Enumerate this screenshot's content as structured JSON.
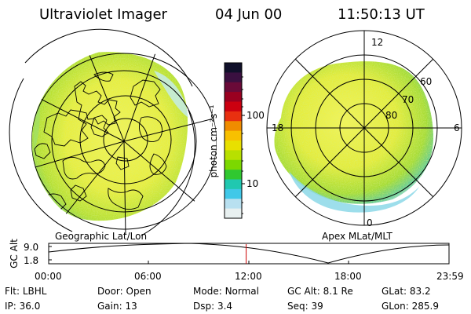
{
  "header": {
    "title": "Ultraviolet Imager",
    "date": "04 Jun 00",
    "time": "11:50:13 UT"
  },
  "left_map": {
    "caption": "Geographic Lat/Lon"
  },
  "right_map": {
    "caption": "Apex MLat/MLT",
    "mlt_labels": [
      "12",
      "18",
      "6",
      "0"
    ],
    "mlat_labels": [
      "60",
      "70",
      "80"
    ]
  },
  "colorbar": {
    "label": "photon cm⁻²s⁻¹",
    "ticks": [
      "100",
      "10"
    ],
    "colors": [
      "#10102a",
      "#3a1040",
      "#6a0a38",
      "#9a0020",
      "#cc0010",
      "#e83010",
      "#f08c00",
      "#f8c000",
      "#e8e000",
      "#b8e000",
      "#7cd800",
      "#30c830",
      "#20c8b0",
      "#40c8e8",
      "#b8e0f0",
      "#e8f0f0"
    ]
  },
  "timeline": {
    "ylabel": "GC Alt",
    "ytick_top": "9.0",
    "ytick_bottom": "1.8",
    "xticks": [
      "00:00",
      "06:00",
      "12:00",
      "18:00",
      "23:59"
    ],
    "marker_time": "11:50"
  },
  "info": {
    "row1": [
      {
        "label": "Flt:",
        "value": "LBHL"
      },
      {
        "label": "Door:",
        "value": "Open"
      },
      {
        "label": "Mode:",
        "value": "Normal"
      },
      {
        "label": "GC Alt:",
        "value": "8.1 Re"
      },
      {
        "label": "GLat:",
        "value": "83.2"
      }
    ],
    "row2": [
      {
        "label": "IP:",
        "value": "36.0"
      },
      {
        "label": "Gain:",
        "value": "13"
      },
      {
        "label": "Dsp:",
        "value": "3.4"
      },
      {
        "label": "Seq:",
        "value": "39"
      },
      {
        "label": "GLon:",
        "value": "285.9"
      }
    ]
  },
  "colors": {
    "aurora_yellow": "#f0f040",
    "aurora_green": "#b4e030",
    "aurora_cyan": "#50d0e0",
    "marker_red": "#cc0000"
  }
}
